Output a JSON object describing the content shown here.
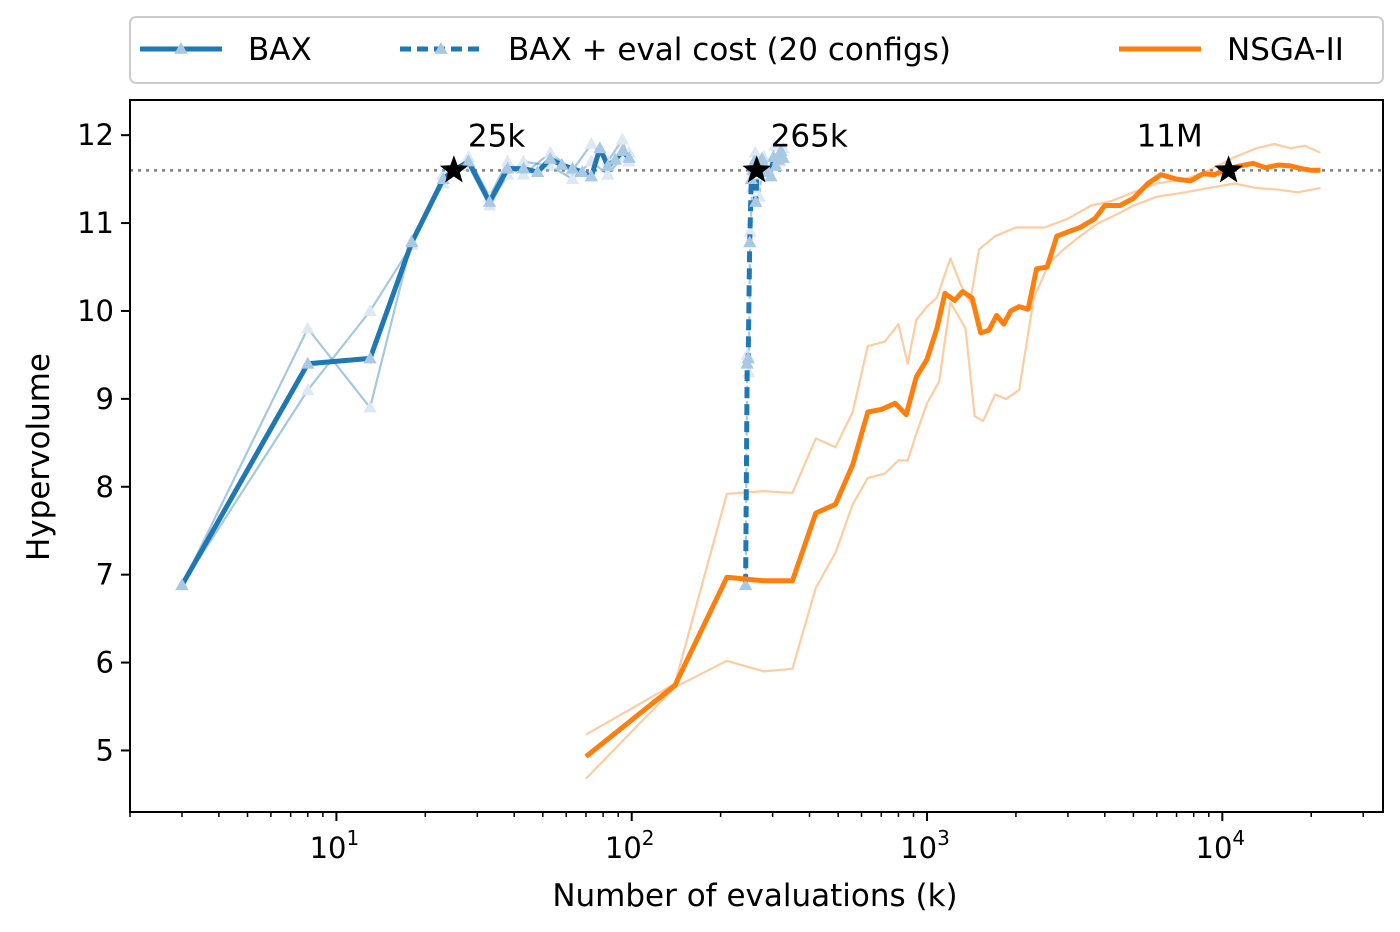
{
  "chart_data": {
    "type": "line",
    "xlabel": "Number of evaluations (k)",
    "ylabel": "Hypervolume",
    "xscale": "log",
    "xlim": [
      2,
      35000
    ],
    "ylim": [
      4.3,
      12.4
    ],
    "yticks": [
      5,
      6,
      7,
      8,
      9,
      10,
      11,
      12
    ],
    "xticks": [
      {
        "value": 10,
        "base": "10",
        "exp": "1"
      },
      {
        "value": 100,
        "base": "10",
        "exp": "2"
      },
      {
        "value": 1000,
        "base": "10",
        "exp": "3"
      },
      {
        "value": 10000,
        "base": "10",
        "exp": "4"
      }
    ],
    "reference_line": {
      "y": 11.6,
      "style": "dotted",
      "color": "#7f7f7f"
    },
    "legend": {
      "placement": "top, above plot",
      "entries": [
        {
          "label": "BAX",
          "color": "#1f77b4",
          "style": "solid",
          "marker": "triangle"
        },
        {
          "label": "BAX + eval cost (20 configs)",
          "color": "#1f77b4",
          "style": "dashed",
          "marker": "triangle"
        },
        {
          "label": "NSGA-II",
          "color": "#ff7f0e",
          "style": "solid",
          "marker": "none"
        }
      ]
    },
    "annotations": [
      {
        "label": "25k",
        "x": 25,
        "y": 11.6,
        "marker": "star"
      },
      {
        "label": "265k",
        "x": 265,
        "y": 11.6,
        "marker": "star"
      },
      {
        "label": "11M",
        "x": 10500,
        "y": 11.6,
        "marker": "star"
      }
    ],
    "series": [
      {
        "name": "BAX",
        "color": "#1f77b4",
        "style": "solid",
        "marker": "triangle",
        "width": 5,
        "points": [
          [
            3,
            6.88
          ],
          [
            8,
            9.4
          ],
          [
            13,
            9.46
          ],
          [
            18,
            10.78
          ],
          [
            23,
            11.5
          ],
          [
            25,
            11.6
          ],
          [
            28,
            11.7
          ],
          [
            33,
            11.24
          ],
          [
            38,
            11.62
          ],
          [
            43,
            11.62
          ],
          [
            48,
            11.58
          ],
          [
            53,
            11.73
          ],
          [
            58,
            11.66
          ],
          [
            63,
            11.62
          ],
          [
            68,
            11.58
          ],
          [
            73,
            11.53
          ],
          [
            78,
            11.85
          ],
          [
            83,
            11.65
          ],
          [
            88,
            11.72
          ],
          [
            93,
            11.82
          ],
          [
            98,
            11.74
          ]
        ]
      },
      {
        "name": "BAX + eval cost (20 configs)",
        "color": "#1f77b4",
        "style": "dashed",
        "marker": "triangle",
        "width": 5,
        "points": [
          [
            243,
            6.88
          ],
          [
            246,
            9.4
          ],
          [
            248,
            9.46
          ],
          [
            251,
            10.78
          ],
          [
            254,
            11.5
          ],
          [
            257,
            11.6
          ],
          [
            260,
            11.7
          ],
          [
            263,
            11.24
          ],
          [
            266,
            11.62
          ],
          [
            269,
            11.62
          ],
          [
            272,
            11.58
          ],
          [
            276,
            11.73
          ],
          [
            280,
            11.66
          ],
          [
            285,
            11.62
          ],
          [
            290,
            11.58
          ],
          [
            296,
            11.53
          ],
          [
            302,
            11.75
          ],
          [
            308,
            11.65
          ],
          [
            314,
            11.72
          ],
          [
            320,
            11.82
          ],
          [
            326,
            11.74
          ]
        ]
      },
      {
        "name": "NSGA-II",
        "color": "#ff7f0e",
        "style": "solid",
        "marker": "none",
        "width": 5,
        "points": [
          [
            70,
            4.93
          ],
          [
            140,
            5.74
          ],
          [
            210,
            6.97
          ],
          [
            280,
            6.93
          ],
          [
            350,
            6.93
          ],
          [
            420,
            7.7
          ],
          [
            490,
            7.8
          ],
          [
            560,
            8.25
          ],
          [
            630,
            8.85
          ],
          [
            700,
            8.88
          ],
          [
            780,
            8.95
          ],
          [
            850,
            8.82
          ],
          [
            920,
            9.25
          ],
          [
            1000,
            9.45
          ],
          [
            1080,
            9.8
          ],
          [
            1150,
            10.2
          ],
          [
            1240,
            10.12
          ],
          [
            1320,
            10.22
          ],
          [
            1420,
            10.15
          ],
          [
            1520,
            9.75
          ],
          [
            1620,
            9.78
          ],
          [
            1720,
            9.95
          ],
          [
            1820,
            9.85
          ],
          [
            1920,
            10.0
          ],
          [
            2050,
            10.05
          ],
          [
            2200,
            10.02
          ],
          [
            2350,
            10.48
          ],
          [
            2550,
            10.5
          ],
          [
            2750,
            10.85
          ],
          [
            3000,
            10.9
          ],
          [
            3300,
            10.95
          ],
          [
            3700,
            11.05
          ],
          [
            4000,
            11.2
          ],
          [
            4500,
            11.2
          ],
          [
            5000,
            11.28
          ],
          [
            5600,
            11.45
          ],
          [
            6200,
            11.55
          ],
          [
            7000,
            11.5
          ],
          [
            7800,
            11.48
          ],
          [
            8600,
            11.56
          ],
          [
            9400,
            11.55
          ],
          [
            10500,
            11.62
          ],
          [
            11500,
            11.65
          ],
          [
            12700,
            11.68
          ],
          [
            14000,
            11.63
          ],
          [
            15500,
            11.66
          ],
          [
            17000,
            11.65
          ],
          [
            18500,
            11.62
          ],
          [
            20000,
            11.6
          ],
          [
            21500,
            11.6
          ]
        ]
      },
      {
        "name": "",
        "color": "#1f77b4",
        "style": "solid",
        "marker": "triangle",
        "width": 2.2,
        "opacity": 0.4,
        "points": [
          [
            3,
            6.88
          ],
          [
            8,
            9.8
          ],
          [
            13,
            8.9
          ],
          [
            18,
            10.8
          ],
          [
            23,
            11.45
          ],
          [
            28,
            11.75
          ],
          [
            33,
            11.3
          ],
          [
            38,
            11.7
          ],
          [
            43,
            11.55
          ],
          [
            53,
            11.8
          ],
          [
            63,
            11.6
          ],
          [
            73,
            11.9
          ],
          [
            83,
            11.7
          ],
          [
            93,
            11.95
          ],
          [
            98,
            11.7
          ]
        ]
      },
      {
        "name": "",
        "color": "#1f77b4",
        "style": "solid",
        "marker": "triangle",
        "width": 2.2,
        "opacity": 0.4,
        "points": [
          [
            3,
            6.88
          ],
          [
            8,
            9.1
          ],
          [
            13,
            10.0
          ],
          [
            18,
            10.75
          ],
          [
            23,
            11.55
          ],
          [
            28,
            11.65
          ],
          [
            33,
            11.2
          ],
          [
            38,
            11.55
          ],
          [
            43,
            11.7
          ],
          [
            53,
            11.65
          ],
          [
            63,
            11.5
          ],
          [
            73,
            11.7
          ],
          [
            83,
            11.55
          ],
          [
            93,
            11.75
          ],
          [
            98,
            11.8
          ]
        ]
      },
      {
        "name": "",
        "color": "#1f77b4",
        "style": "dashed",
        "marker": "triangle",
        "width": 2.2,
        "opacity": 0.4,
        "points": [
          [
            243,
            6.88
          ],
          [
            246,
            9.5
          ],
          [
            249,
            9.3
          ],
          [
            252,
            10.9
          ],
          [
            256,
            11.4
          ],
          [
            262,
            11.8
          ],
          [
            270,
            11.3
          ],
          [
            280,
            11.75
          ],
          [
            292,
            11.6
          ],
          [
            305,
            11.88
          ],
          [
            318,
            11.7
          ],
          [
            326,
            11.85
          ]
        ]
      },
      {
        "name": "",
        "color": "#ff7f0e",
        "style": "solid",
        "marker": "none",
        "width": 2.2,
        "opacity": 0.4,
        "points": [
          [
            70,
            5.18
          ],
          [
            140,
            5.76
          ],
          [
            210,
            7.92
          ],
          [
            280,
            7.95
          ],
          [
            350,
            7.93
          ],
          [
            420,
            8.55
          ],
          [
            490,
            8.45
          ],
          [
            560,
            8.85
          ],
          [
            630,
            9.6
          ],
          [
            720,
            9.65
          ],
          [
            800,
            9.85
          ],
          [
            860,
            9.4
          ],
          [
            920,
            9.9
          ],
          [
            1000,
            10.05
          ],
          [
            1080,
            10.15
          ],
          [
            1200,
            10.6
          ],
          [
            1300,
            10.3
          ],
          [
            1400,
            10.1
          ],
          [
            1500,
            10.7
          ],
          [
            1700,
            10.85
          ],
          [
            2000,
            10.95
          ],
          [
            2500,
            10.95
          ],
          [
            3000,
            11.05
          ],
          [
            3600,
            11.2
          ],
          [
            4200,
            11.25
          ],
          [
            5000,
            11.35
          ],
          [
            6000,
            11.45
          ],
          [
            7500,
            11.5
          ],
          [
            9000,
            11.6
          ],
          [
            11000,
            11.75
          ],
          [
            13000,
            11.85
          ],
          [
            15000,
            11.9
          ],
          [
            17000,
            11.85
          ],
          [
            19000,
            11.88
          ],
          [
            21500,
            11.8
          ]
        ]
      },
      {
        "name": "",
        "color": "#ff7f0e",
        "style": "solid",
        "marker": "none",
        "width": 2.2,
        "opacity": 0.4,
        "points": [
          [
            70,
            4.68
          ],
          [
            140,
            5.72
          ],
          [
            210,
            6.02
          ],
          [
            280,
            5.9
          ],
          [
            350,
            5.93
          ],
          [
            420,
            6.85
          ],
          [
            490,
            7.25
          ],
          [
            560,
            7.8
          ],
          [
            630,
            8.1
          ],
          [
            720,
            8.15
          ],
          [
            800,
            8.3
          ],
          [
            860,
            8.3
          ],
          [
            920,
            8.6
          ],
          [
            1000,
            8.95
          ],
          [
            1100,
            9.2
          ],
          [
            1200,
            10.1
          ],
          [
            1350,
            9.8
          ],
          [
            1450,
            8.8
          ],
          [
            1550,
            8.75
          ],
          [
            1700,
            9.05
          ],
          [
            1850,
            9.0
          ],
          [
            2050,
            9.1
          ],
          [
            2300,
            10.15
          ],
          [
            2600,
            10.55
          ],
          [
            2900,
            10.7
          ],
          [
            3300,
            10.85
          ],
          [
            3800,
            11.0
          ],
          [
            4400,
            11.1
          ],
          [
            5000,
            11.2
          ],
          [
            6000,
            11.3
          ],
          [
            7500,
            11.35
          ],
          [
            9000,
            11.4
          ],
          [
            11000,
            11.45
          ],
          [
            13000,
            11.4
          ],
          [
            15500,
            11.38
          ],
          [
            18000,
            11.35
          ],
          [
            21500,
            11.4
          ]
        ]
      }
    ]
  }
}
